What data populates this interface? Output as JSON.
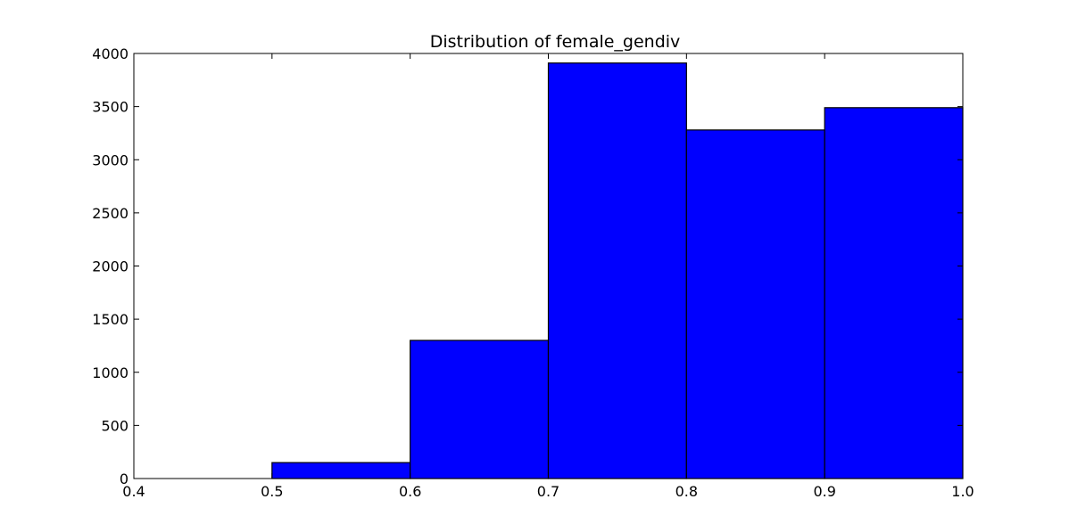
{
  "chart_data": {
    "type": "bar",
    "title": "Distribution of female_gendiv",
    "xlabel": "",
    "ylabel": "",
    "xlim": [
      0.4,
      1.0
    ],
    "ylim": [
      0,
      4000
    ],
    "x_ticks": [
      "0.4",
      "0.5",
      "0.6",
      "0.7",
      "0.8",
      "0.9",
      "1.0"
    ],
    "x_tick_values": [
      0.4,
      0.5,
      0.6,
      0.7,
      0.8,
      0.9,
      1.0
    ],
    "y_ticks": [
      "0",
      "500",
      "1000",
      "1500",
      "2000",
      "2500",
      "3000",
      "3500",
      "4000"
    ],
    "y_tick_values": [
      0,
      500,
      1000,
      1500,
      2000,
      2500,
      3000,
      3500,
      4000
    ],
    "bins": [
      {
        "start": 0.5,
        "end": 0.6,
        "count": 150
      },
      {
        "start": 0.6,
        "end": 0.7,
        "count": 1300
      },
      {
        "start": 0.7,
        "end": 0.8,
        "count": 3910
      },
      {
        "start": 0.8,
        "end": 0.9,
        "count": 3280
      },
      {
        "start": 0.9,
        "end": 1.0,
        "count": 3490
      }
    ],
    "bar_color": "#0000ff",
    "edge_color": "#000000",
    "grid": false,
    "legend": "none"
  }
}
